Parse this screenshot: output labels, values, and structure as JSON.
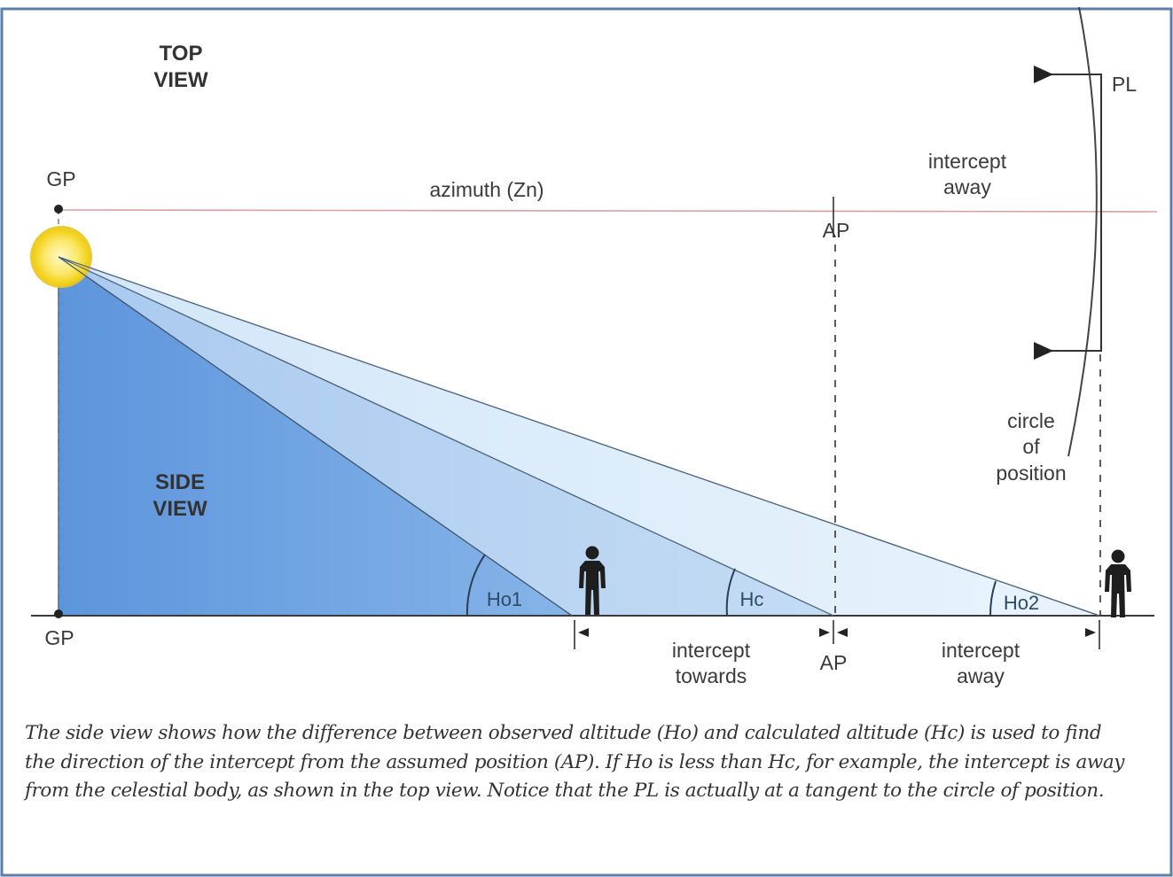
{
  "top_view": {
    "title_line1": "TOP",
    "title_line2": "VIEW"
  },
  "side_view": {
    "title_line1": "SIDE",
    "title_line2": "VIEW"
  },
  "labels": {
    "gp_top": "GP",
    "gp_bottom": "GP",
    "azimuth": "azimuth (Zn)",
    "ap_top": "AP",
    "ap_bottom": "AP",
    "pl": "PL",
    "intercept_away_top_line1": "intercept",
    "intercept_away_top_line2": "away",
    "circle_line1": "circle",
    "circle_line2": "of",
    "circle_line3": "position",
    "ho1": "Ho1",
    "hc": "Hc",
    "ho2": "Ho2",
    "intercept_towards_line1": "intercept",
    "intercept_towards_line2": "towards",
    "intercept_away_bottom_line1": "intercept",
    "intercept_away_bottom_line2": "away"
  },
  "caption": "The side view shows how the difference between observed altitude (Ho) and calculated altitude (Hc) is used to find the direction of the intercept from the assumed position (AP). If Ho is less than Hc, for example, the intercept is away from the celestial body, as shown in the top view. Notice that the PL is actually at a tangent to the circle of position.",
  "colors": {
    "border": "#5b7fa8",
    "azimuth_line": "#d9a0a0",
    "triangle_ho2": "#dceefa",
    "triangle_hc": "#b7d3f1",
    "triangle_ho1": "#6fa2e0",
    "sun": "#f3d21b"
  }
}
